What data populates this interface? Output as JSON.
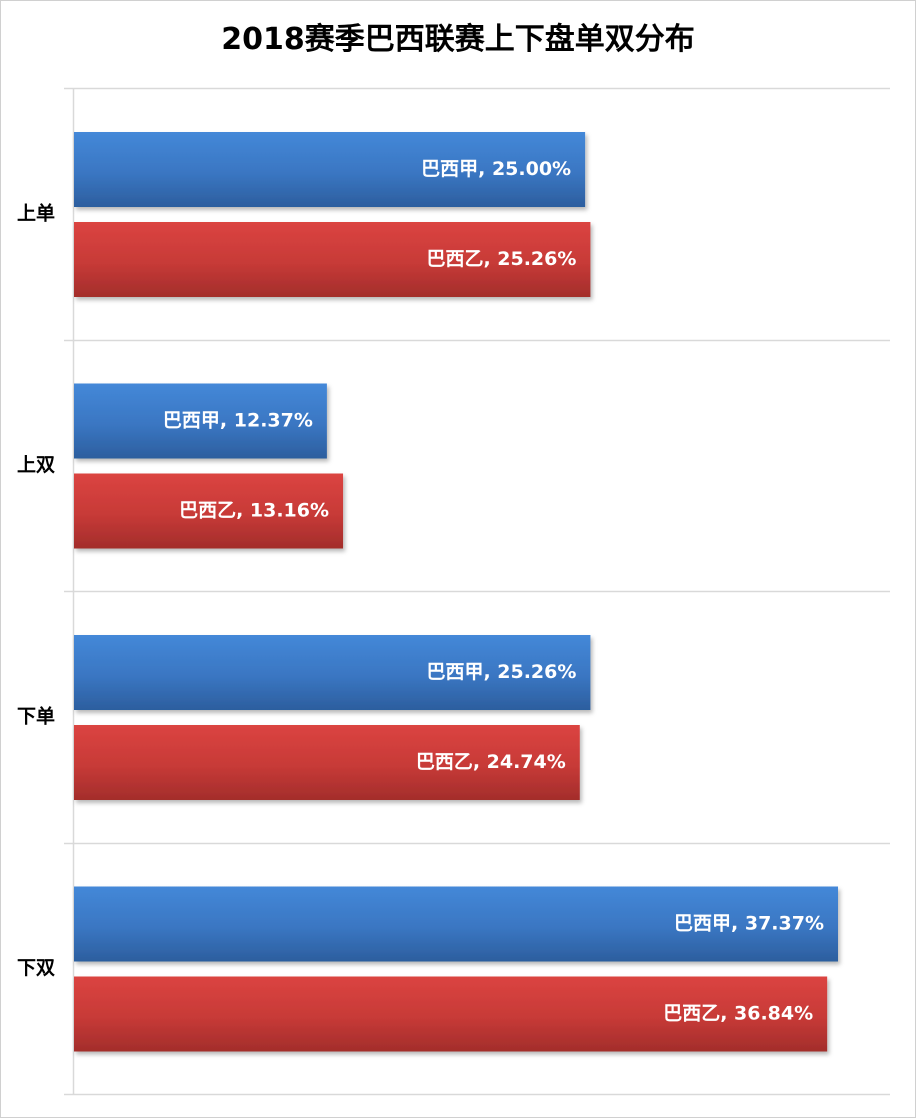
{
  "chart_data": {
    "type": "bar",
    "orientation": "horizontal",
    "title": "2018赛季巴西联赛上下盘单双分布",
    "categories": [
      "上单",
      "上双",
      "下单",
      "下双"
    ],
    "series": [
      {
        "name": "巴西甲",
        "color": "#3a78c4",
        "values": [
          25.0,
          12.37,
          25.26,
          37.37
        ],
        "labels": [
          "巴西甲, 25.00%",
          "巴西甲, 12.37%",
          "巴西甲, 25.26%",
          "巴西甲, 37.37%"
        ]
      },
      {
        "name": "巴西乙",
        "color": "#c93a38",
        "values": [
          25.26,
          13.16,
          24.74,
          36.84
        ],
        "labels": [
          "巴西乙, 25.26%",
          "巴西乙, 13.16%",
          "巴西乙, 24.74%",
          "巴西乙, 36.84%"
        ]
      }
    ],
    "xlim": [
      0,
      40
    ],
    "value_unit": "%",
    "grid": true,
    "legend": "none"
  }
}
